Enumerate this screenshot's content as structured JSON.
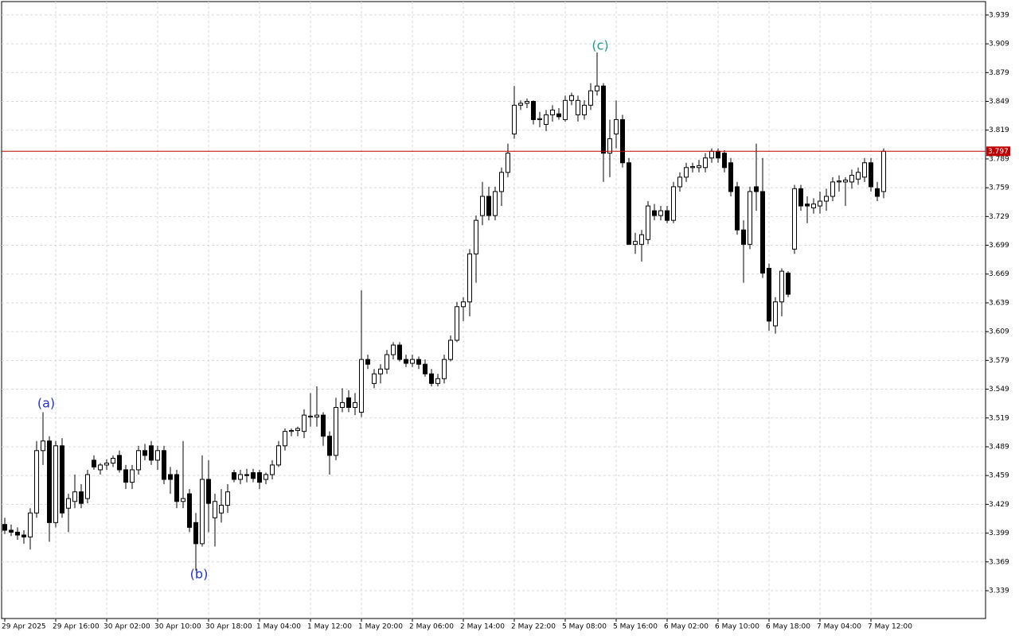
{
  "chart_data": {
    "type": "candlestick",
    "ylim": [
      3.31,
      3.953
    ],
    "yticks": [
      3.339,
      3.369,
      3.399,
      3.429,
      3.459,
      3.489,
      3.519,
      3.549,
      3.579,
      3.609,
      3.639,
      3.669,
      3.699,
      3.729,
      3.759,
      3.789,
      3.819,
      3.849,
      3.879,
      3.909,
      3.939
    ],
    "grid": true,
    "up_color": "#ffffff",
    "down_color": "#000000",
    "current_price": 3.797,
    "current_price_color": "#c00000",
    "categories": [
      "29 Apr 2025",
      null,
      null,
      null,
      null,
      null,
      null,
      null,
      "29 Apr 16:00",
      null,
      null,
      null,
      null,
      null,
      null,
      null,
      "30 Apr 02:00",
      null,
      null,
      null,
      null,
      null,
      null,
      null,
      "30 Apr 10:00",
      null,
      null,
      null,
      null,
      null,
      null,
      null,
      "30 Apr 18:00",
      null,
      null,
      null,
      null,
      null,
      null,
      null,
      "1 May 04:00",
      null,
      null,
      null,
      null,
      null,
      null,
      null,
      "1 May 12:00",
      null,
      null,
      null,
      null,
      null,
      null,
      null,
      "1 May 20:00",
      null,
      null,
      null,
      null,
      null,
      null,
      null,
      "2 May 06:00",
      null,
      null,
      null,
      null,
      null,
      null,
      null,
      "2 May 14:00",
      null,
      null,
      null,
      null,
      null,
      null,
      null,
      "2 May 22:00",
      null,
      null,
      null,
      null,
      null,
      null,
      null,
      "5 May 08:00",
      null,
      null,
      null,
      null,
      null,
      null,
      null,
      "5 May 16:00",
      null,
      null,
      null,
      null,
      null,
      null,
      null,
      "6 May 02:00",
      null,
      null,
      null,
      null,
      null,
      null,
      null,
      "6 May 10:00",
      null,
      null,
      null,
      null,
      null,
      null,
      null,
      "6 May 18:00",
      null,
      null,
      null,
      null,
      null,
      null,
      null,
      "7 May 04:00",
      null,
      null,
      null,
      null,
      null,
      null,
      null,
      "7 May 12:00",
      null,
      null
    ],
    "open": [
      3.408,
      3.402,
      3.4,
      3.397,
      3.395,
      3.42,
      3.485,
      3.495,
      3.41,
      3.49,
      3.425,
      3.432,
      3.442,
      3.435,
      3.475,
      3.465,
      3.47,
      3.472,
      3.48,
      3.465,
      3.452,
      3.465,
      3.485,
      3.49,
      3.475,
      3.485,
      3.46,
      3.46,
      3.432,
      3.44,
      3.41,
      3.388,
      3.455,
      3.415,
      3.42,
      3.428,
      3.462,
      3.455,
      3.46,
      3.462,
      3.462,
      3.455,
      3.46,
      3.47,
      3.49,
      3.505,
      3.506,
      3.505,
      3.52,
      3.52,
      3.522,
      3.5,
      3.48,
      3.53,
      3.54,
      3.53,
      3.525,
      3.58,
      3.555,
      3.565,
      3.57,
      3.585,
      3.595,
      3.58,
      3.576,
      3.58,
      3.575,
      3.565,
      3.555,
      3.56,
      3.58,
      3.6,
      3.635,
      3.64,
      3.69,
      3.73,
      3.75,
      3.73,
      3.755,
      3.775,
      3.815,
      3.845,
      3.847,
      3.849,
      3.83,
      3.825,
      3.835,
      3.836,
      3.83,
      3.85,
      3.835,
      3.835,
      3.845,
      3.86,
      3.865,
      3.795,
      3.815,
      3.83,
      3.785,
      3.7,
      3.7,
      3.705,
      3.735,
      3.73,
      3.735,
      3.725,
      3.76,
      3.77,
      3.78,
      3.78,
      3.78,
      3.79,
      3.797,
      3.795,
      3.785,
      3.76,
      3.715,
      3.7,
      3.76,
      3.755,
      3.675,
      3.615,
      3.64,
      3.67,
      3.695,
      3.758,
      3.742,
      3.738,
      3.74,
      3.745,
      3.75,
      3.765,
      3.765,
      3.765,
      3.768,
      3.77,
      3.785,
      3.758,
      3.755
    ],
    "high": [
      3.415,
      3.408,
      3.405,
      3.402,
      3.425,
      3.495,
      3.525,
      3.5,
      3.495,
      3.498,
      3.44,
      3.46,
      3.45,
      3.465,
      3.48,
      3.472,
      3.476,
      3.48,
      3.485,
      3.47,
      3.47,
      3.49,
      3.492,
      3.495,
      3.49,
      3.49,
      3.468,
      3.465,
      3.495,
      3.445,
      3.42,
      3.48,
      3.475,
      3.44,
      3.445,
      3.45,
      3.465,
      3.465,
      3.466,
      3.466,
      3.465,
      3.462,
      3.475,
      3.495,
      3.508,
      3.508,
      3.51,
      3.528,
      3.545,
      3.552,
      3.525,
      3.505,
      3.54,
      3.55,
      3.548,
      3.545,
      3.652,
      3.585,
      3.57,
      3.575,
      3.59,
      3.598,
      3.598,
      3.585,
      3.585,
      3.583,
      3.58,
      3.57,
      3.565,
      3.585,
      3.605,
      3.64,
      3.645,
      3.695,
      3.73,
      3.765,
      3.76,
      3.76,
      3.78,
      3.805,
      3.865,
      3.85,
      3.852,
      3.85,
      3.838,
      3.84,
      3.845,
      3.842,
      3.855,
      3.858,
      3.855,
      3.85,
      3.868,
      3.9,
      3.868,
      3.83,
      3.85,
      3.835,
      3.79,
      3.712,
      3.715,
      3.745,
      3.742,
      3.74,
      3.74,
      3.765,
      3.775,
      3.785,
      3.785,
      3.788,
      3.795,
      3.8,
      3.8,
      3.798,
      3.79,
      3.765,
      3.725,
      3.76,
      3.805,
      3.79,
      3.68,
      3.645,
      3.675,
      3.672,
      3.762,
      3.762,
      3.75,
      3.748,
      3.755,
      3.758,
      3.77,
      3.772,
      3.77,
      3.778,
      3.78,
      3.79,
      3.79,
      3.765,
      3.8
    ],
    "low": [
      3.398,
      3.396,
      3.392,
      3.388,
      3.382,
      3.415,
      3.47,
      3.39,
      3.405,
      3.415,
      3.4,
      3.425,
      3.425,
      3.43,
      3.465,
      3.46,
      3.465,
      3.468,
      3.462,
      3.445,
      3.445,
      3.46,
      3.475,
      3.47,
      3.465,
      3.45,
      3.44,
      3.425,
      3.425,
      3.4,
      3.36,
      3.385,
      3.4,
      3.385,
      3.41,
      3.42,
      3.452,
      3.45,
      3.452,
      3.452,
      3.445,
      3.45,
      3.455,
      3.468,
      3.485,
      3.5,
      3.5,
      3.498,
      3.51,
      3.51,
      3.49,
      3.46,
      3.475,
      3.525,
      3.525,
      3.522,
      3.52,
      3.57,
      3.55,
      3.555,
      3.565,
      3.58,
      3.578,
      3.572,
      3.572,
      3.57,
      3.562,
      3.552,
      3.552,
      3.555,
      3.578,
      3.598,
      3.62,
      3.625,
      3.66,
      3.72,
      3.725,
      3.725,
      3.74,
      3.77,
      3.81,
      3.84,
      3.842,
      3.825,
      3.822,
      3.818,
      3.828,
      3.83,
      3.828,
      3.845,
      3.828,
      3.83,
      3.84,
      3.855,
      3.765,
      3.77,
      3.8,
      3.78,
      3.7,
      3.69,
      3.682,
      3.7,
      3.725,
      3.725,
      3.722,
      3.722,
      3.755,
      3.765,
      3.775,
      3.775,
      3.775,
      3.785,
      3.785,
      3.775,
      3.75,
      3.71,
      3.66,
      3.695,
      3.735,
      3.665,
      3.61,
      3.607,
      3.625,
      3.645,
      3.69,
      3.735,
      3.722,
      3.732,
      3.732,
      3.735,
      3.745,
      3.755,
      3.74,
      3.758,
      3.762,
      3.765,
      3.755,
      3.745,
      3.748
    ],
    "close": [
      3.402,
      3.4,
      3.397,
      3.395,
      3.42,
      3.485,
      3.495,
      3.41,
      3.49,
      3.42,
      3.435,
      3.442,
      3.43,
      3.46,
      3.468,
      3.47,
      3.472,
      3.477,
      3.465,
      3.452,
      3.465,
      3.485,
      3.48,
      3.475,
      3.485,
      3.455,
      3.455,
      3.432,
      3.435,
      3.405,
      3.388,
      3.455,
      3.43,
      3.432,
      3.428,
      3.442,
      3.455,
      3.46,
      3.459,
      3.456,
      3.452,
      3.46,
      3.47,
      3.49,
      3.505,
      3.506,
      3.508,
      3.522,
      3.521,
      3.522,
      3.5,
      3.48,
      3.53,
      3.535,
      3.53,
      3.535,
      3.58,
      3.575,
      3.565,
      3.57,
      3.585,
      3.595,
      3.58,
      3.576,
      3.58,
      3.575,
      3.565,
      3.555,
      3.56,
      3.58,
      3.6,
      3.635,
      3.64,
      3.69,
      3.725,
      3.75,
      3.73,
      3.755,
      3.775,
      3.795,
      3.845,
      3.847,
      3.849,
      3.83,
      3.831,
      3.835,
      3.84,
      3.833,
      3.85,
      3.855,
      3.85,
      3.845,
      3.86,
      3.865,
      3.795,
      3.81,
      3.83,
      3.785,
      3.7,
      3.703,
      3.71,
      3.74,
      3.73,
      3.735,
      3.725,
      3.76,
      3.77,
      3.78,
      3.781,
      3.782,
      3.79,
      3.797,
      3.79,
      3.78,
      3.755,
      3.715,
      3.7,
      3.755,
      3.755,
      3.67,
      3.62,
      3.64,
      3.672,
      3.648,
      3.758,
      3.74,
      3.74,
      3.742,
      3.745,
      3.75,
      3.765,
      3.766,
      3.767,
      3.772,
      3.775,
      3.785,
      3.76,
      3.75,
      3.797
    ],
    "annotations": [
      {
        "text": "(a)",
        "color": "#2233cc"
      },
      {
        "text": "(b)",
        "color": "#2233cc"
      },
      {
        "text": "(c)",
        "color": "#1a9a8a"
      }
    ]
  }
}
